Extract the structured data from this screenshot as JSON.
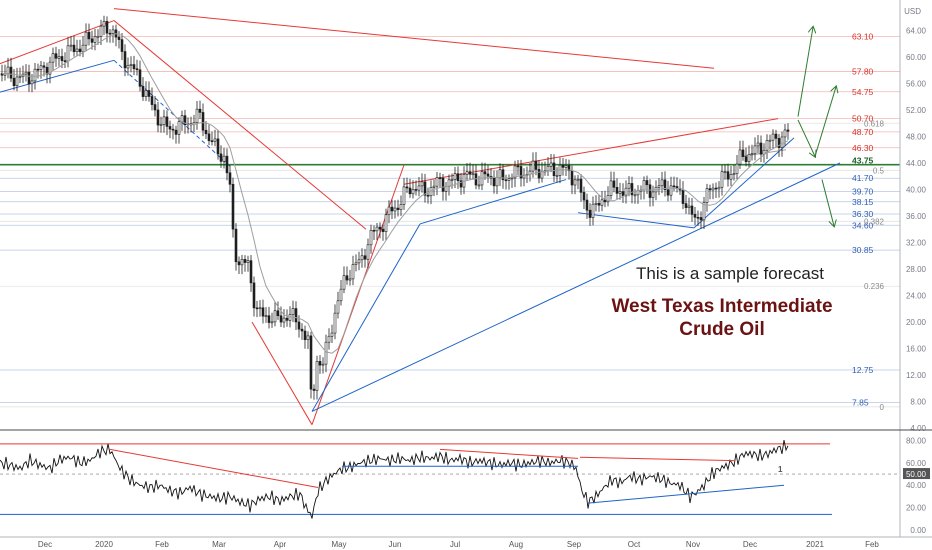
{
  "chart_data": [
    {
      "type": "candlestick",
      "title_line1": "This is a sample forecast",
      "title_line2": "West Texas Intermediate",
      "title_line3": "Crude Oil",
      "currency": "USD",
      "ylim": [
        4,
        68
      ],
      "y_ticks": [
        4,
        8,
        12,
        16,
        20,
        24,
        28,
        32,
        36,
        40,
        44,
        48,
        52,
        56,
        60,
        64
      ],
      "y_tick_labels": [
        "4.00",
        "8.00",
        "12.00",
        "16.00",
        "20.00",
        "24.00",
        "28.00",
        "32.00",
        "36.00",
        "40.00",
        "44.00",
        "48.00",
        "52.00",
        "56.00",
        "60.00",
        "64.00"
      ],
      "x_labels": [
        "Dec",
        "2020",
        "Feb",
        "Mar",
        "Apr",
        "May",
        "Jun",
        "Jul",
        "Aug",
        "Sep",
        "Oct",
        "Nov",
        "Dec",
        "2021",
        "Feb"
      ],
      "current_price": 43.75,
      "red_levels": [
        {
          "value": 63.1,
          "label": "63.10"
        },
        {
          "value": 57.8,
          "label": "57.80"
        },
        {
          "value": 54.75,
          "label": "54.75"
        },
        {
          "value": 50.7,
          "label": "50.70"
        },
        {
          "value": 48.7,
          "label": "48.70"
        },
        {
          "value": 46.3,
          "label": "46.30"
        }
      ],
      "blue_levels": [
        {
          "value": 41.7,
          "label": "41.70"
        },
        {
          "value": 39.7,
          "label": "39.70"
        },
        {
          "value": 38.15,
          "label": "38.15"
        },
        {
          "value": 36.3,
          "label": "36.30"
        },
        {
          "value": 34.6,
          "label": "34.60"
        },
        {
          "value": 30.85,
          "label": "30.85"
        },
        {
          "value": 12.75,
          "label": "12.75"
        },
        {
          "value": 7.85,
          "label": "7.85"
        }
      ],
      "fib_levels": [
        {
          "value": 50.0,
          "label": "0.618"
        },
        {
          "value": 42.9,
          "label": "0.5"
        },
        {
          "value": 35.2,
          "label": "0.382"
        },
        {
          "value": 25.4,
          "label": "0.236"
        },
        {
          "value": 7.2,
          "label": "0"
        }
      ],
      "price_path": [
        [
          0,
          57.5
        ],
        [
          12,
          57
        ],
        [
          24,
          56.8
        ],
        [
          36,
          57.5
        ],
        [
          48,
          59
        ],
        [
          60,
          60
        ],
        [
          72,
          61
        ],
        [
          84,
          62
        ],
        [
          96,
          63.5
        ],
        [
          108,
          64.5
        ],
        [
          114,
          64
        ],
        [
          120,
          61
        ],
        [
          128,
          59
        ],
        [
          136,
          57.5
        ],
        [
          144,
          55
        ],
        [
          152,
          52.5
        ],
        [
          160,
          50.5
        ],
        [
          168,
          49
        ],
        [
          176,
          49.5
        ],
        [
          184,
          50
        ],
        [
          192,
          50.5
        ],
        [
          200,
          51
        ],
        [
          208,
          48
        ],
        [
          216,
          46
        ],
        [
          224,
          45
        ],
        [
          230,
          40
        ],
        [
          234,
          31
        ],
        [
          240,
          29
        ],
        [
          248,
          28.5
        ],
        [
          256,
          22
        ],
        [
          264,
          20.5
        ],
        [
          272,
          21
        ],
        [
          280,
          20
        ],
        [
          288,
          21.5
        ],
        [
          296,
          20
        ],
        [
          302,
          19
        ],
        [
          308,
          17
        ],
        [
          312,
          6
        ],
        [
          316,
          15
        ],
        [
          322,
          13
        ],
        [
          328,
          17
        ],
        [
          334,
          21
        ],
        [
          340,
          24
        ],
        [
          346,
          27
        ],
        [
          352,
          28
        ],
        [
          360,
          29
        ],
        [
          368,
          32
        ],
        [
          376,
          34
        ],
        [
          384,
          35
        ],
        [
          392,
          37
        ],
        [
          400,
          38
        ],
        [
          408,
          40
        ],
        [
          416,
          40.5
        ],
        [
          424,
          39.5
        ],
        [
          432,
          40.5
        ],
        [
          440,
          41
        ],
        [
          448,
          41
        ],
        [
          456,
          41.5
        ],
        [
          464,
          42
        ],
        [
          472,
          42
        ],
        [
          480,
          41.5
        ],
        [
          488,
          42
        ],
        [
          496,
          41.7
        ],
        [
          504,
          41.5
        ],
        [
          512,
          42.5
        ],
        [
          520,
          42.5
        ],
        [
          528,
          42.7
        ],
        [
          536,
          43
        ],
        [
          544,
          42.8
        ],
        [
          552,
          43
        ],
        [
          560,
          43.2
        ],
        [
          568,
          42.8
        ],
        [
          576,
          41.5
        ],
        [
          584,
          38
        ],
        [
          590,
          37
        ],
        [
          596,
          37
        ],
        [
          604,
          39
        ],
        [
          612,
          40
        ],
        [
          620,
          40
        ],
        [
          628,
          39.5
        ],
        [
          636,
          40
        ],
        [
          644,
          40.2
        ],
        [
          652,
          40
        ],
        [
          660,
          40.3
        ],
        [
          668,
          40.5
        ],
        [
          676,
          39.8
        ],
        [
          684,
          39
        ],
        [
          690,
          36
        ],
        [
          696,
          35.5
        ],
        [
          702,
          37
        ],
        [
          710,
          40
        ],
        [
          718,
          41
        ],
        [
          726,
          42
        ],
        [
          734,
          43
        ],
        [
          742,
          45
        ],
        [
          750,
          45.5
        ],
        [
          758,
          46
        ],
        [
          766,
          47
        ],
        [
          774,
          47.5
        ],
        [
          782,
          48
        ],
        [
          788,
          48.5
        ]
      ],
      "oscillator": {
        "ylim": [
          0,
          84
        ],
        "y_ticks": [
          0,
          20,
          40,
          50,
          60,
          80
        ],
        "y_tick_labels": [
          "0.00",
          "20.00",
          "40.00",
          "50.00",
          "60.00",
          "80.00"
        ],
        "level_80": 77,
        "level_15": 14,
        "current_value": 50.0,
        "current_label": "50.00",
        "marker_label": "1",
        "series": [
          [
            0,
            60
          ],
          [
            10,
            58
          ],
          [
            20,
            55
          ],
          [
            30,
            62
          ],
          [
            40,
            58
          ],
          [
            50,
            55
          ],
          [
            60,
            63
          ],
          [
            70,
            65
          ],
          [
            80,
            60
          ],
          [
            90,
            62
          ],
          [
            100,
            70
          ],
          [
            110,
            72
          ],
          [
            120,
            55
          ],
          [
            130,
            45
          ],
          [
            140,
            40
          ],
          [
            150,
            38
          ],
          [
            160,
            40
          ],
          [
            170,
            35
          ],
          [
            180,
            33
          ],
          [
            190,
            38
          ],
          [
            200,
            32
          ],
          [
            210,
            30
          ],
          [
            220,
            28
          ],
          [
            230,
            30
          ],
          [
            240,
            25
          ],
          [
            250,
            22
          ],
          [
            260,
            28
          ],
          [
            270,
            30
          ],
          [
            280,
            26
          ],
          [
            290,
            30
          ],
          [
            300,
            32
          ],
          [
            306,
            20
          ],
          [
            312,
            12
          ],
          [
            318,
            35
          ],
          [
            326,
            44
          ],
          [
            334,
            50
          ],
          [
            342,
            55
          ],
          [
            350,
            56
          ],
          [
            360,
            60
          ],
          [
            370,
            62
          ],
          [
            380,
            64
          ],
          [
            390,
            62
          ],
          [
            400,
            64
          ],
          [
            410,
            62
          ],
          [
            420,
            65
          ],
          [
            430,
            64
          ],
          [
            440,
            66
          ],
          [
            450,
            62
          ],
          [
            460,
            64
          ],
          [
            470,
            60
          ],
          [
            480,
            62
          ],
          [
            490,
            60
          ],
          [
            500,
            58
          ],
          [
            510,
            60
          ],
          [
            520,
            58
          ],
          [
            530,
            60
          ],
          [
            540,
            62
          ],
          [
            550,
            60
          ],
          [
            560,
            62
          ],
          [
            570,
            60
          ],
          [
            576,
            55
          ],
          [
            582,
            35
          ],
          [
            588,
            25
          ],
          [
            596,
            30
          ],
          [
            604,
            38
          ],
          [
            612,
            45
          ],
          [
            620,
            42
          ],
          [
            630,
            48
          ],
          [
            640,
            45
          ],
          [
            650,
            48
          ],
          [
            660,
            46
          ],
          [
            670,
            42
          ],
          [
            680,
            40
          ],
          [
            690,
            30
          ],
          [
            696,
            33
          ],
          [
            704,
            40
          ],
          [
            712,
            50
          ],
          [
            720,
            55
          ],
          [
            728,
            58
          ],
          [
            736,
            62
          ],
          [
            744,
            68
          ],
          [
            752,
            68
          ],
          [
            760,
            66
          ],
          [
            768,
            68
          ],
          [
            776,
            72
          ],
          [
            784,
            74
          ],
          [
            788,
            76
          ]
        ]
      }
    }
  ]
}
